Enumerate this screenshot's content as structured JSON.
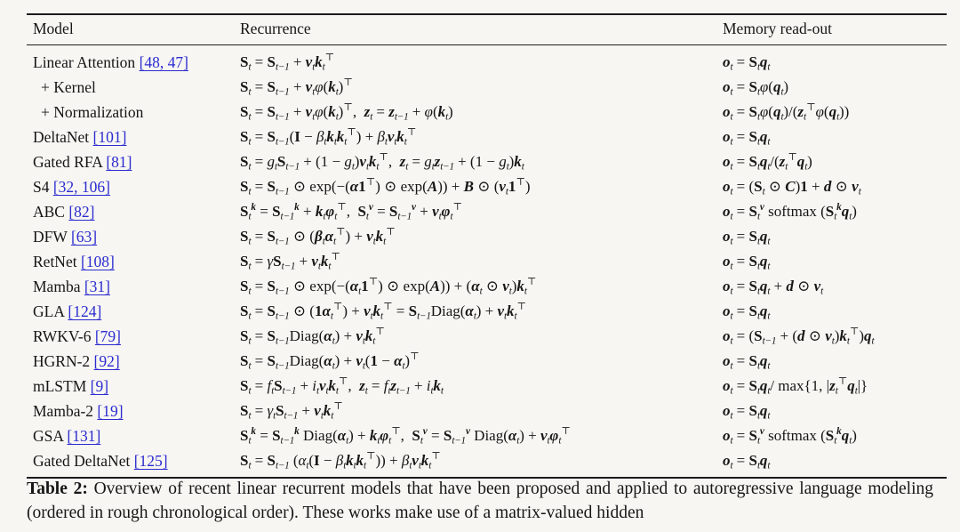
{
  "colors": {
    "background": "#f7f6f2",
    "text": "#161616",
    "link_blue": "#2b2bd0",
    "rule": "#1c1c1c"
  },
  "table": {
    "columns": [
      "Model",
      "Recurrence",
      "Memory read-out"
    ],
    "rows": [
      {
        "model": "Linear Attention",
        "cite": "[48, 47]",
        "indent": false,
        "recurrence": "<mb>S</mb><sub>t</sub> = <mb>S</mb><sub>t−1</sub> + <mv>v</mv><sub>t</sub><mv>k</mv><sub>t</sub><sup>⊤</sup>",
        "readout": "<mv>o</mv><sub>t</sub> = <mb>S</mb><sub>t</sub><mv>q</mv><sub>t</sub>"
      },
      {
        "model": "+ Kernel",
        "cite": "",
        "indent": true,
        "recurrence": "<mb>S</mb><sub>t</sub> = <mb>S</mb><sub>t−1</sub> + <mv>v</mv><sub>t</sub><mi>φ</mi>(<mv>k</mv><sub>t</sub>)<sup>⊤</sup>",
        "readout": "<mv>o</mv><sub>t</sub> = <mb>S</mb><sub>t</sub><mi>φ</mi>(<mv>q</mv><sub>t</sub>)"
      },
      {
        "model": "+ Normalization",
        "cite": "",
        "indent": true,
        "recurrence": "<mb>S</mb><sub>t</sub> = <mb>S</mb><sub>t−1</sub> + <mv>v</mv><sub>t</sub><mi>φ</mi>(<mv>k</mv><sub>t</sub>)<sup>⊤</sup>,&nbsp; <mv>z</mv><sub>t</sub> = <mv>z</mv><sub>t−1</sub> + <mi>φ</mi>(<mv>k</mv><sub>t</sub>)",
        "readout": "<mv>o</mv><sub>t</sub> = <mb>S</mb><sub>t</sub><mi>φ</mi>(<mv>q</mv><sub>t</sub>)/(<mv>z</mv><sub>t</sub><sup>⊤</sup><mi>φ</mi>(<mv>q</mv><sub>t</sub>))"
      },
      {
        "model": "DeltaNet",
        "cite": "[101]",
        "indent": false,
        "recurrence": "<mb>S</mb><sub>t</sub> = <mb>S</mb><sub>t−1</sub>(<mb>I</mb> − <mi>β</mi><sub>t</sub><mv>k</mv><sub>t</sub><mv>k</mv><sub>t</sub><sup>⊤</sup>) + <mi>β</mi><sub>t</sub><mv>v</mv><sub>t</sub><mv>k</mv><sub>t</sub><sup>⊤</sup>",
        "readout": "<mv>o</mv><sub>t</sub> = <mb>S</mb><sub>t</sub><mv>q</mv><sub>t</sub>"
      },
      {
        "model": "Gated RFA",
        "cite": "[81]",
        "indent": false,
        "recurrence": "<mb>S</mb><sub>t</sub> = <mi>g</mi><sub>t</sub><mb>S</mb><sub>t−1</sub> + (1 − <mi>g</mi><sub>t</sub>)<mv>v</mv><sub>t</sub><mv>k</mv><sub>t</sub><sup>⊤</sup>,&nbsp; <mv>z</mv><sub>t</sub> = <mi>g</mi><sub>t</sub><mv>z</mv><sub>t−1</sub> + (1 − <mi>g</mi><sub>t</sub>)<mv>k</mv><sub>t</sub>",
        "readout": "<mv>o</mv><sub>t</sub> = <mb>S</mb><sub>t</sub><mv>q</mv><sub>t</sub>/(<mv>z</mv><sub>t</sub><sup>⊤</sup><mv>q</mv><sub>t</sub>)"
      },
      {
        "model": "S4",
        "cite": "[32, 106]",
        "indent": false,
        "recurrence": "<mb>S</mb><sub>t</sub> = <mb>S</mb><sub>t−1</sub> ⊙ exp(−(<mv>α</mv><mb>1</mb><sup>⊤</sup>) ⊙ exp(<mv>A</mv>)) + <mv>B</mv> ⊙ (<mv>v</mv><sub>t</sub><mb>1</mb><sup>⊤</sup>)",
        "readout": "<mv>o</mv><sub>t</sub> = (<mb>S</mb><sub>t</sub> ⊙ <mv>C</mv>)<mb>1</mb> + <mv>d</mv> ⊙ <mv>v</mv><sub>t</sub>"
      },
      {
        "model": "ABC",
        "cite": "[82]",
        "indent": false,
        "recurrence": "<mb>S</mb><sub>t</sub><sup><mv>k</mv></sup> = <mb>S</mb><sub>t−1</sub><sup><mv>k</mv></sup> + <mv>k</mv><sub>t</sub><mv>φ</mv><sub>t</sub><sup>⊤</sup>,&nbsp; <mb>S</mb><sub>t</sub><sup><mv>v</mv></sup> = <mb>S</mb><sub>t−1</sub><sup><mv>v</mv></sup> + <mv>v</mv><sub>t</sub><mv>φ</mv><sub>t</sub><sup>⊤</sup>",
        "readout": "<mv>o</mv><sub>t</sub> = <mb>S</mb><sub>t</sub><sup><mv>v</mv></sup> softmax (<mb>S</mb><sub>t</sub><sup><mv>k</mv></sup><mv>q</mv><sub>t</sub>)"
      },
      {
        "model": "DFW",
        "cite": "[63]",
        "indent": false,
        "recurrence": "<mb>S</mb><sub>t</sub> = <mb>S</mb><sub>t−1</sub> ⊙ (<mv>β</mv><sub>t</sub><mv>α</mv><sub>t</sub><sup>⊤</sup>) + <mv>v</mv><sub>t</sub><mv>k</mv><sub>t</sub><sup>⊤</sup>",
        "readout": "<mv>o</mv><sub>t</sub> = <mb>S</mb><sub>t</sub><mv>q</mv><sub>t</sub>"
      },
      {
        "model": "RetNet",
        "cite": "[108]",
        "indent": false,
        "recurrence": "<mb>S</mb><sub>t</sub> = <mi>γ</mi><mb>S</mb><sub>t−1</sub> + <mv>v</mv><sub>t</sub><mv>k</mv><sub>t</sub><sup>⊤</sup>",
        "readout": "<mv>o</mv><sub>t</sub> = <mb>S</mb><sub>t</sub><mv>q</mv><sub>t</sub>"
      },
      {
        "model": "Mamba",
        "cite": "[31]",
        "indent": false,
        "recurrence": "<mb>S</mb><sub>t</sub> = <mb>S</mb><sub>t−1</sub> ⊙ exp(−(<mv>α</mv><sub>t</sub><mb>1</mb><sup>⊤</sup>) ⊙ exp(<mv>A</mv>)) + (<mv>α</mv><sub>t</sub> ⊙ <mv>v</mv><sub>t</sub>)<mv>k</mv><sub>t</sub><sup>⊤</sup>",
        "readout": "<mv>o</mv><sub>t</sub> = <mb>S</mb><sub>t</sub><mv>q</mv><sub>t</sub> + <mv>d</mv> ⊙ <mv>v</mv><sub>t</sub>"
      },
      {
        "model": "GLA",
        "cite": "[124]",
        "indent": false,
        "recurrence": "<mb>S</mb><sub>t</sub> = <mb>S</mb><sub>t−1</sub> ⊙ (<mb>1</mb><mv>α</mv><sub>t</sub><sup>⊤</sup>) + <mv>v</mv><sub>t</sub><mv>k</mv><sub>t</sub><sup>⊤</sup> = <mb>S</mb><sub>t−1</sub>Diag(<mv>α</mv><sub>t</sub>) + <mv>v</mv><sub>t</sub><mv>k</mv><sub>t</sub><sup>⊤</sup>",
        "readout": "<mv>o</mv><sub>t</sub> = <mb>S</mb><sub>t</sub><mv>q</mv><sub>t</sub>"
      },
      {
        "model": "RWKV-6",
        "cite": "[79]",
        "indent": false,
        "recurrence": "<mb>S</mb><sub>t</sub> = <mb>S</mb><sub>t−1</sub>Diag(<mv>α</mv><sub>t</sub>) + <mv>v</mv><sub>t</sub><mv>k</mv><sub>t</sub><sup>⊤</sup>",
        "readout": "<mv>o</mv><sub>t</sub> = (<mb>S</mb><sub>t−1</sub> + (<mv>d</mv> ⊙ <mv>v</mv><sub>t</sub>)<mv>k</mv><sub>t</sub><sup>⊤</sup>)<mv>q</mv><sub>t</sub>"
      },
      {
        "model": "HGRN-2",
        "cite": "[92]",
        "indent": false,
        "recurrence": "<mb>S</mb><sub>t</sub> = <mb>S</mb><sub>t−1</sub>Diag(<mv>α</mv><sub>t</sub>) + <mv>v</mv><sub>t</sub>(<mb>1</mb> − <mv>α</mv><sub>t</sub>)<sup>⊤</sup>",
        "readout": "<mv>o</mv><sub>t</sub> = <mb>S</mb><sub>t</sub><mv>q</mv><sub>t</sub>"
      },
      {
        "model": "mLSTM",
        "cite": "[9]",
        "indent": false,
        "recurrence": "<mb>S</mb><sub>t</sub> = <mi>f</mi><sub>t</sub><mb>S</mb><sub>t−1</sub> + <mi>i</mi><sub>t</sub><mv>v</mv><sub>t</sub><mv>k</mv><sub>t</sub><sup>⊤</sup>,&nbsp; <mv>z</mv><sub>t</sub> = <mi>f</mi><sub>t</sub><mv>z</mv><sub>t−1</sub> + <mi>i</mi><sub>t</sub><mv>k</mv><sub>t</sub>",
        "readout": "<mv>o</mv><sub>t</sub> = <mb>S</mb><sub>t</sub><mv>q</mv><sub>t</sub>/ max{1, |<mv>z</mv><sub>t</sub><sup>⊤</sup><mv>q</mv><sub>t</sub>|}"
      },
      {
        "model": "Mamba-2",
        "cite": "[19]",
        "indent": false,
        "recurrence": "<mb>S</mb><sub>t</sub> = <mi>γ</mi><sub>t</sub><mb>S</mb><sub>t−1</sub> + <mv>v</mv><sub>t</sub><mv>k</mv><sub>t</sub><sup>⊤</sup>",
        "readout": "<mv>o</mv><sub>t</sub> = <mb>S</mb><sub>t</sub><mv>q</mv><sub>t</sub>"
      },
      {
        "model": "GSA",
        "cite": "[131]",
        "indent": false,
        "recurrence": "<mb>S</mb><sub>t</sub><sup><mv>k</mv></sup> = <mb>S</mb><sub>t−1</sub><sup><mv>k</mv></sup> Diag(<mv>α</mv><sub>t</sub>) + <mv>k</mv><sub>t</sub><mv>φ</mv><sub>t</sub><sup>⊤</sup>,&nbsp; <mb>S</mb><sub>t</sub><sup><mv>v</mv></sup> = <mb>S</mb><sub>t−1</sub><sup><mv>v</mv></sup> Diag(<mv>α</mv><sub>t</sub>) + <mv>v</mv><sub>t</sub><mv>φ</mv><sub>t</sub><sup>⊤</sup>",
        "readout": "<mv>o</mv><sub>t</sub> = <mb>S</mb><sub>t</sub><sup><mv>v</mv></sup> softmax (<mb>S</mb><sub>t</sub><sup><mv>k</mv></sup><mv>q</mv><sub>t</sub>)"
      },
      {
        "model": "Gated DeltaNet",
        "cite": "[125]",
        "indent": false,
        "recurrence": "<mb>S</mb><sub>t</sub> = <mb>S</mb><sub>t−1</sub> (<mi>α</mi><sub>t</sub>(<mb>I</mb> − <mi>β</mi><sub>t</sub><mv>k</mv><sub>t</sub><mv>k</mv><sub>t</sub><sup>⊤</sup>)) + <mi>β</mi><sub>t</sub><mv>v</mv><sub>t</sub><mv>k</mv><sub>t</sub><sup>⊤</sup>",
        "readout": "<mv>o</mv><sub>t</sub> = <mb>S</mb><sub>t</sub><mv>q</mv><sub>t</sub>"
      }
    ]
  },
  "caption": {
    "label": "Table 2:",
    "text": "Overview of recent linear recurrent models that have been proposed and applied to autoregressive language modeling (ordered in rough chronological order). These works make use of a matrix-valued hidden"
  }
}
